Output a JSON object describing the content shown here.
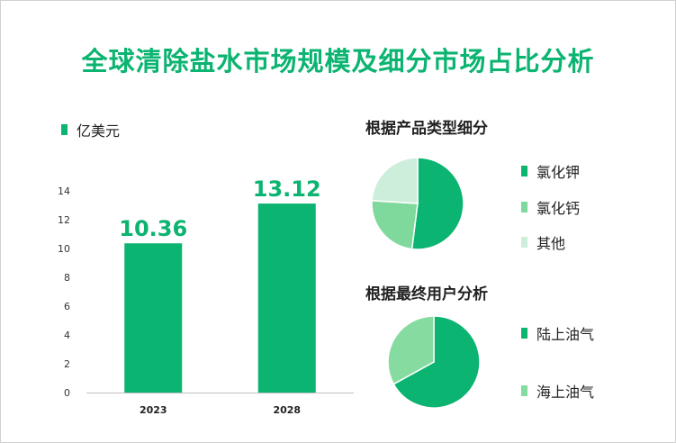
{
  "title": "全球清除盐水市场规模及细分市场占比分析",
  "unit_legend": {
    "label": "亿美元",
    "color": "#0bb470"
  },
  "pie1_title": "根据产品类型细分",
  "pie2_title": "根据最终用户分析",
  "colors": {
    "primary": "#0bb470",
    "secondary": "#7fd89c",
    "light": "#cdeedb",
    "mid": "#86dba0"
  },
  "chart_data": [
    {
      "type": "bar",
      "categories": [
        "2023",
        "2028"
      ],
      "values": [
        10.36,
        13.12
      ],
      "value_labels": [
        "10.36",
        "13.12"
      ],
      "ylabel": "亿美元",
      "ylim": [
        0,
        14
      ],
      "yticks": [
        "0",
        "2",
        "4",
        "6",
        "8",
        "10",
        "12",
        "14"
      ],
      "grid": false,
      "color": "#0bb470"
    },
    {
      "type": "pie",
      "labels": [
        "氯化钾",
        "氯化钙",
        "其他"
      ],
      "values": [
        52,
        24,
        24
      ],
      "colors": [
        "#0bb470",
        "#7fd89c",
        "#cdeedb"
      ]
    },
    {
      "type": "pie",
      "labels": [
        "陆上油气",
        "海上油气"
      ],
      "values": [
        67,
        33
      ],
      "colors": [
        "#0bb470",
        "#86dba0"
      ]
    }
  ]
}
